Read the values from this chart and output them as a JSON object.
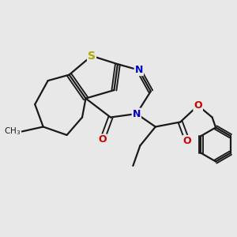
{
  "bg_color": "#e8e8e8",
  "bond_color": "#1a1a1a",
  "S_color": "#aaaa00",
  "N_color": "#0000cc",
  "O_color": "#cc0000",
  "line_width": 1.6,
  "figsize": [
    3.0,
    3.0
  ],
  "dpi": 100,
  "xlim": [
    0,
    10
  ],
  "ylim": [
    0,
    10
  ]
}
